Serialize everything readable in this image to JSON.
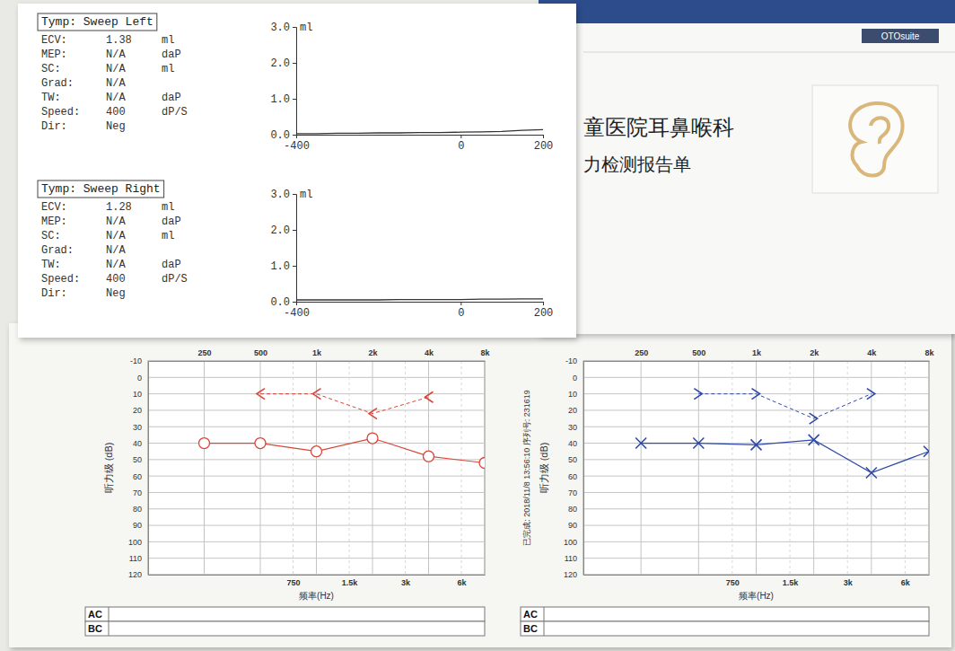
{
  "document": {
    "header_line1": "童医院耳鼻喉科",
    "header_line2": "力检测报告单",
    "brand": "OTOsuite"
  },
  "chart_data": [
    {
      "type": "line",
      "title": "Tymp: Sweep Left",
      "params": [
        {
          "label": "ECV:",
          "value": 1.38,
          "unit": "ml"
        },
        {
          "label": "MEP:",
          "value": "N/A",
          "unit": "daP"
        },
        {
          "label": "SC:",
          "value": "N/A",
          "unit": "ml"
        },
        {
          "label": "Grad:",
          "value": "N/A"
        },
        {
          "label": "TW:",
          "value": "N/A",
          "unit": "daP"
        },
        {
          "label": "Speed:",
          "value": 400,
          "unit": "dP/S"
        },
        {
          "label": "Dir:",
          "value": "Neg"
        }
      ],
      "x": [
        -400,
        -350,
        -300,
        -250,
        -200,
        -150,
        -100,
        -50,
        0,
        50,
        100,
        150,
        200
      ],
      "values": [
        0.03,
        0.03,
        0.04,
        0.04,
        0.05,
        0.05,
        0.06,
        0.06,
        0.07,
        0.08,
        0.09,
        0.12,
        0.14
      ],
      "color": "#333333",
      "y_label": "ml",
      "xlim": [
        -400,
        200
      ],
      "ylim": [
        0,
        3
      ],
      "xticks": [
        -400,
        0,
        200
      ],
      "yticks": [
        {
          "value": 0,
          "label": "0.0"
        },
        {
          "value": 1,
          "label": "1.0"
        },
        {
          "value": 2,
          "label": "2.0"
        },
        {
          "value": 3,
          "label": "3.0"
        }
      ]
    },
    {
      "type": "line",
      "title": "Tymp: Sweep Right",
      "params": [
        {
          "label": "ECV:",
          "value": 1.28,
          "unit": "ml"
        },
        {
          "label": "MEP:",
          "value": "N/A",
          "unit": "daP"
        },
        {
          "label": "SC:",
          "value": "N/A",
          "unit": "ml"
        },
        {
          "label": "Grad:",
          "value": "N/A"
        },
        {
          "label": "TW:",
          "value": "N/A",
          "unit": "daP"
        },
        {
          "label": "Speed:",
          "value": 400,
          "unit": "dP/S"
        },
        {
          "label": "Dir:",
          "value": "Neg"
        }
      ],
      "x": [
        -400,
        -350,
        -300,
        -250,
        -200,
        -150,
        -100,
        -50,
        0,
        50,
        100,
        150,
        200
      ],
      "values": [
        0.05,
        0.05,
        0.05,
        0.05,
        0.05,
        0.06,
        0.06,
        0.06,
        0.06,
        0.07,
        0.07,
        0.08,
        0.08
      ],
      "color": "#333333",
      "y_label": "ml",
      "xlim": [
        -400,
        200
      ],
      "ylim": [
        0,
        3
      ],
      "xticks": [
        -400,
        0,
        200
      ],
      "yticks": [
        {
          "value": 0,
          "label": "0.0"
        },
        {
          "value": 1,
          "label": "1.0"
        },
        {
          "value": 2,
          "label": "2.0"
        },
        {
          "value": 3,
          "label": "3.0"
        }
      ]
    },
    {
      "type": "line",
      "log": "x",
      "grid": true,
      "x_label": "频率(Hz)",
      "y_label": "听力级 (dB)",
      "xlim": [
        125,
        8000
      ],
      "ylim": [
        120,
        -10
      ],
      "xticks": [
        {
          "value": 250,
          "label": "250"
        },
        {
          "value": 500,
          "label": "500"
        },
        {
          "value": 750,
          "label": "750"
        },
        {
          "value": 1000,
          "label": "1k"
        },
        {
          "value": 1500,
          "label": "1.5k"
        },
        {
          "value": 2000,
          "label": "2k"
        },
        {
          "value": 3000,
          "label": "3k"
        },
        {
          "value": 4000,
          "label": "4k"
        },
        {
          "value": 6000,
          "label": "6k"
        },
        {
          "value": 8000,
          "label": "8k"
        }
      ],
      "yticks": [
        -10,
        0,
        10,
        20,
        30,
        40,
        50,
        60,
        70,
        80,
        90,
        100,
        110,
        120
      ],
      "series": [
        {
          "color": "#d9453a",
          "marker": "circle",
          "line_style": "solid",
          "x": [
            250,
            500,
            1000,
            2000,
            4000,
            8000
          ],
          "values": [
            40,
            40,
            45,
            37,
            48,
            52
          ]
        },
        {
          "color": "#d9453a",
          "marker": "angle-left",
          "line_style": "dashed",
          "x": [
            500,
            1000,
            2000,
            4000
          ],
          "values": [
            10,
            10,
            22,
            12
          ]
        }
      ],
      "row_labels": [
        "AC",
        "BC"
      ]
    },
    {
      "type": "line",
      "log": "x",
      "grid": true,
      "x_label": "频率(Hz)",
      "y_label": "听力级 (dB)",
      "annotations": [
        "已完成: 2018/11/8 13:56:10 序列号: 231619"
      ],
      "xlim": [
        125,
        8000
      ],
      "ylim": [
        120,
        -10
      ],
      "xticks": [
        {
          "value": 250,
          "label": "250"
        },
        {
          "value": 500,
          "label": "500"
        },
        {
          "value": 750,
          "label": "750"
        },
        {
          "value": 1000,
          "label": "1k"
        },
        {
          "value": 1500,
          "label": "1.5k"
        },
        {
          "value": 2000,
          "label": "2k"
        },
        {
          "value": 3000,
          "label": "3k"
        },
        {
          "value": 4000,
          "label": "4k"
        },
        {
          "value": 6000,
          "label": "6k"
        },
        {
          "value": 8000,
          "label": "8k"
        }
      ],
      "yticks": [
        -10,
        0,
        10,
        20,
        30,
        40,
        50,
        60,
        70,
        80,
        90,
        100,
        110,
        120
      ],
      "series": [
        {
          "color": "#2e4aa8",
          "marker": "x",
          "line_style": "solid",
          "x": [
            250,
            500,
            1000,
            2000,
            4000,
            8000
          ],
          "values": [
            40,
            40,
            41,
            38,
            58,
            45
          ]
        },
        {
          "color": "#2e4aa8",
          "marker": "angle-right",
          "line_style": "dashed",
          "x": [
            500,
            1000,
            2000,
            4000
          ],
          "values": [
            10,
            10,
            25,
            10
          ]
        }
      ],
      "row_labels": [
        "AC",
        "BC"
      ]
    }
  ]
}
